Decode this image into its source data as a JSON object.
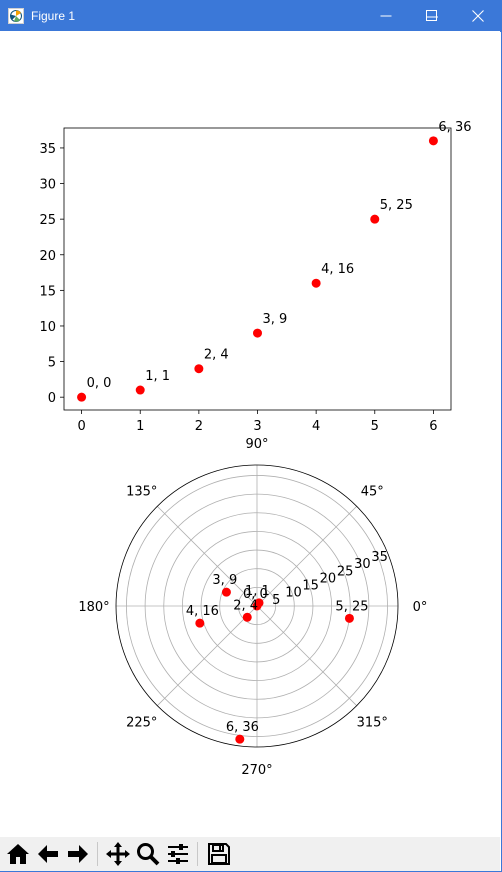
{
  "window": {
    "title": "Figure 1",
    "accent_color": "#3b78d8",
    "controls": [
      "minimize-icon",
      "maximize-icon",
      "close-icon"
    ]
  },
  "toolbar": {
    "buttons": [
      "home-icon",
      "back-icon",
      "forward-icon",
      "pan-icon",
      "zoom-icon",
      "configure-subplots-icon",
      "save-icon"
    ]
  },
  "chart_data": [
    {
      "type": "scatter",
      "title": "",
      "xlabel": "",
      "ylabel": "",
      "xlim": [
        -0.3,
        6.3
      ],
      "ylim": [
        -1.8,
        37.8
      ],
      "xticks": [
        0,
        1,
        2,
        3,
        4,
        5,
        6
      ],
      "yticks": [
        0,
        5,
        10,
        15,
        20,
        25,
        30,
        35
      ],
      "grid": false,
      "marker_color": "#ff0000",
      "x": [
        0,
        1,
        2,
        3,
        4,
        5,
        6
      ],
      "y": [
        0,
        1,
        4,
        9,
        16,
        25,
        36
      ],
      "annotations": [
        "0, 0",
        "1, 1",
        "2, 4",
        "3, 9",
        "4, 16",
        "5, 25",
        "6, 36"
      ]
    },
    {
      "type": "scatter",
      "projection": "polar",
      "title": "",
      "angle_unit": "radians",
      "theta": [
        0,
        1,
        4,
        9,
        16,
        25,
        36
      ],
      "r": [
        0,
        1,
        4,
        9,
        16,
        25,
        36
      ],
      "rlim": [
        0,
        37.8
      ],
      "rticks": [
        5,
        10,
        15,
        20,
        25,
        30,
        35
      ],
      "angle_ticks": [
        "0°",
        "45°",
        "90°",
        "135°",
        "180°",
        "225°",
        "270°",
        "315°"
      ],
      "grid": true,
      "marker_color": "#ff0000",
      "annotations": [
        "0, 0",
        "1, 1",
        "2, 4",
        "3, 9",
        "4, 16",
        "5, 25",
        "6, 36"
      ]
    }
  ]
}
